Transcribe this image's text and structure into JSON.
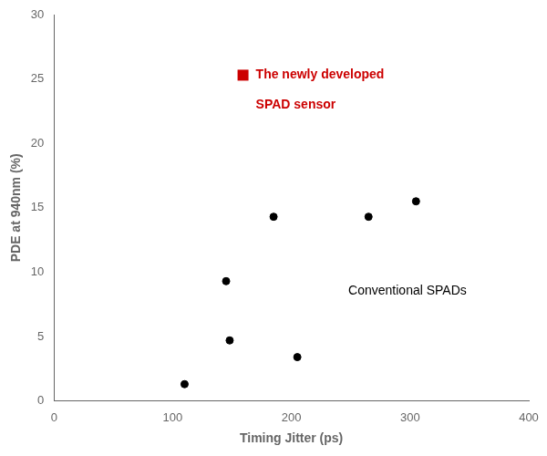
{
  "chart_data": {
    "type": "scatter",
    "xlabel": "Timing Jitter (ps)",
    "ylabel": "PDE at 940nm (%)",
    "x": [
      110,
      145,
      148,
      185,
      205,
      265,
      305
    ],
    "values": [
      1.3,
      9.3,
      4.7,
      14.3,
      3.4,
      14.3,
      15.5
    ],
    "color": "#000000",
    "xlim": [
      0,
      400
    ],
    "ylim": [
      0,
      30
    ],
    "xticks": [
      0,
      100,
      200,
      300,
      400
    ],
    "yticks": [
      0,
      5,
      10,
      15,
      20,
      25,
      30
    ],
    "grid": false,
    "annotations": [
      {
        "text": "Conventional SPADs",
        "x": 248,
        "y": 8.5
      },
      {
        "text": "The newly developed",
        "x": 170,
        "y": 24.8,
        "color": "#cc0000",
        "marker": "square"
      },
      {
        "text": "SPAD sensor",
        "x": 170,
        "y": 22.5,
        "color": "#cc0000"
      }
    ]
  }
}
